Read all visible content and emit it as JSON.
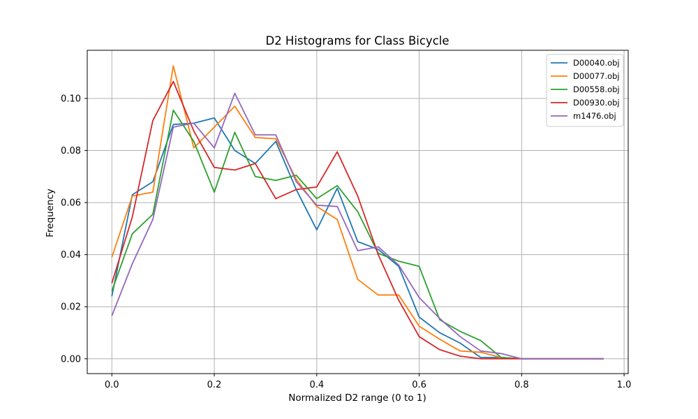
{
  "chart_data": {
    "type": "line",
    "title": "D2 Histograms for Class Bicycle",
    "xlabel": "Normalized D2 range (0 to 1)",
    "ylabel": "Frequency",
    "xlim": [
      -0.048,
      1.008
    ],
    "ylim": [
      -0.0057,
      0.1185
    ],
    "xticks": [
      0.0,
      0.2,
      0.4,
      0.6,
      0.8,
      1.0
    ],
    "xtick_labels": [
      "0.0",
      "0.2",
      "0.4",
      "0.6",
      "0.8",
      "1.0"
    ],
    "yticks": [
      0.0,
      0.02,
      0.04,
      0.06,
      0.08,
      0.1
    ],
    "ytick_labels": [
      "0.00",
      "0.02",
      "0.04",
      "0.06",
      "0.08",
      "0.10"
    ],
    "grid": true,
    "legend_position": "top-right",
    "x": [
      0.0,
      0.04,
      0.08,
      0.12,
      0.16,
      0.2,
      0.24,
      0.28,
      0.32,
      0.36,
      0.4,
      0.44,
      0.48,
      0.52,
      0.56,
      0.6,
      0.64,
      0.68,
      0.72,
      0.76,
      0.8,
      0.84,
      0.88,
      0.92,
      0.96
    ],
    "series": [
      {
        "name": "D00040.obj",
        "color": "#1f77b4",
        "values": [
          0.024,
          0.063,
          0.068,
          0.09,
          0.0905,
          0.0925,
          0.08,
          0.075,
          0.0835,
          0.065,
          0.0495,
          0.0655,
          0.045,
          0.042,
          0.0355,
          0.016,
          0.01,
          0.006,
          0.0005,
          0.0005,
          0.0,
          0.0,
          0.0,
          0.0,
          0.0
        ]
      },
      {
        "name": "D00077.obj",
        "color": "#ff7f0e",
        "values": [
          0.039,
          0.0625,
          0.064,
          0.1125,
          0.081,
          0.089,
          0.097,
          0.085,
          0.0845,
          0.069,
          0.0585,
          0.0535,
          0.0305,
          0.0245,
          0.0245,
          0.0125,
          0.0075,
          0.003,
          0.0025,
          0.0005,
          0.0,
          0.0,
          0.0,
          0.0,
          0.0
        ]
      },
      {
        "name": "D00558.obj",
        "color": "#2ca02c",
        "values": [
          0.026,
          0.048,
          0.0555,
          0.0955,
          0.0835,
          0.064,
          0.087,
          0.07,
          0.0685,
          0.0705,
          0.0615,
          0.0665,
          0.0565,
          0.0405,
          0.0375,
          0.0355,
          0.015,
          0.0105,
          0.007,
          0.0005,
          0.0,
          0.0,
          0.0,
          0.0,
          0.0
        ]
      },
      {
        "name": "D00930.obj",
        "color": "#d62728",
        "values": [
          0.029,
          0.0545,
          0.0915,
          0.1065,
          0.0875,
          0.0735,
          0.0725,
          0.075,
          0.0615,
          0.065,
          0.066,
          0.0795,
          0.0625,
          0.04,
          0.0225,
          0.0085,
          0.0035,
          0.001,
          0.0,
          0.0,
          0.0,
          0.0,
          0.0,
          0.0,
          0.0
        ]
      },
      {
        "name": "m1476.obj",
        "color": "#9467bd",
        "values": [
          0.0165,
          0.0365,
          0.0535,
          0.089,
          0.0905,
          0.081,
          0.102,
          0.086,
          0.086,
          0.068,
          0.059,
          0.0585,
          0.0415,
          0.043,
          0.036,
          0.0235,
          0.0155,
          0.0085,
          0.003,
          0.002,
          0.0,
          0.0,
          0.0,
          0.0,
          0.0
        ]
      }
    ]
  }
}
